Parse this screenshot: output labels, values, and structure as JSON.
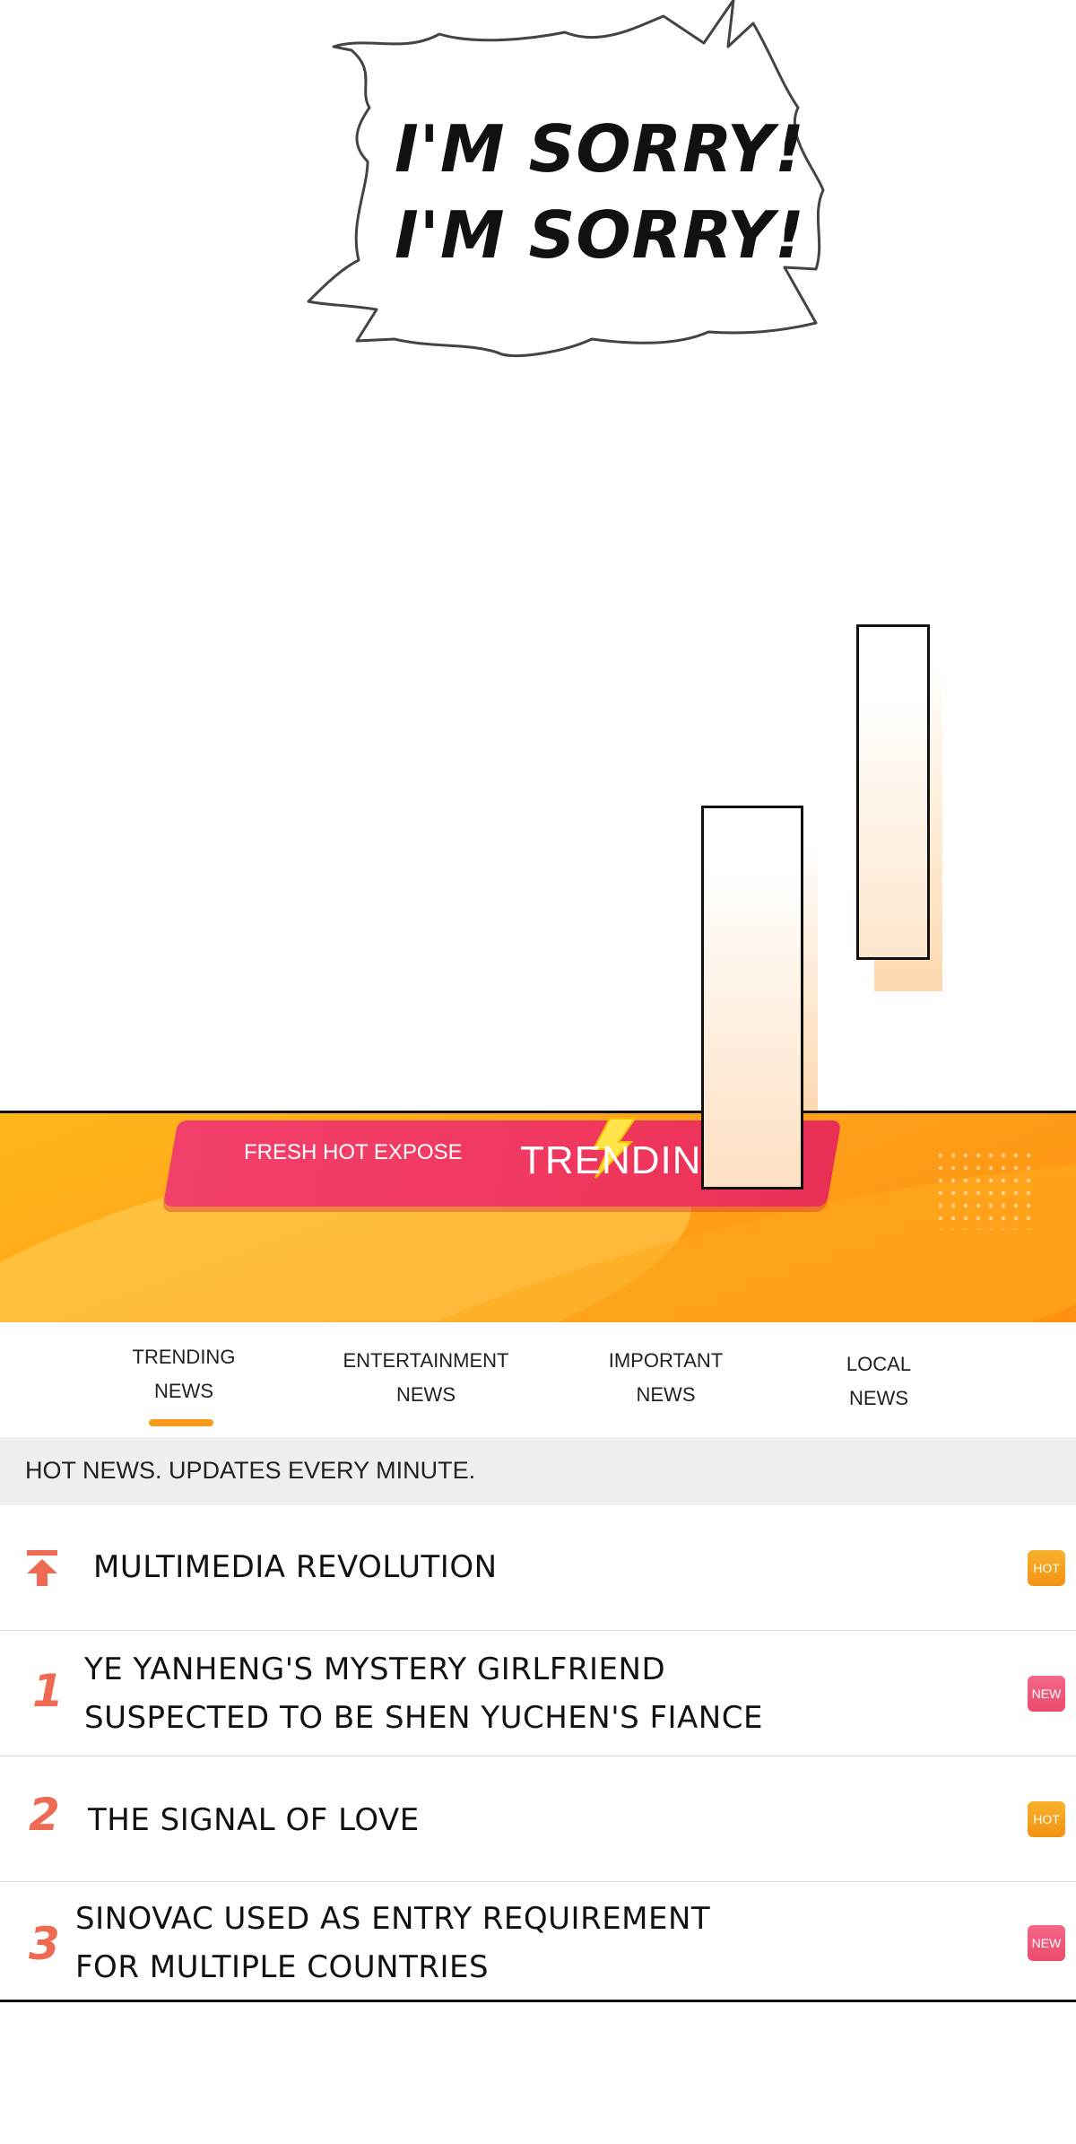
{
  "bubble": {
    "line1": "I'M SORRY!",
    "line2": "I'M SORRY!"
  },
  "banner": {
    "subtitle": "FRESH HOT EXPOSE",
    "title": "TRENDING"
  },
  "tabs": [
    {
      "line1": "TRENDING",
      "line2": "NEWS",
      "active": true
    },
    {
      "line1": "ENTERTAINMENT",
      "line2": "NEWS",
      "active": false
    },
    {
      "line1": "IMPORTANT",
      "line2": "NEWS",
      "active": false
    },
    {
      "line1": "LOCAL",
      "line2": "NEWS",
      "active": false
    }
  ],
  "strip": {
    "text": "HOT NEWS. UPDATES EVERY MINUTE."
  },
  "news": [
    {
      "rank": "",
      "icon": "pin-top-icon",
      "line1": "MULTIMEDIA REVOLUTION",
      "line2": "",
      "badge": "HOT"
    },
    {
      "rank": "1",
      "line1": "YE YANHENG'S MYSTERY GIRLFRIEND",
      "line2": "SUSPECTED TO BE SHEN YUCHEN'S FIANCE",
      "badge": "NEW"
    },
    {
      "rank": "2",
      "line1": "THE SIGNAL OF LOVE",
      "line2": "",
      "badge": "HOT"
    },
    {
      "rank": "3",
      "line1": "SINOVAC USED AS ENTRY REQUIREMENT",
      "line2": "FOR MULTIPLE COUNTRIES",
      "badge": "NEW"
    }
  ],
  "colors": {
    "accent_orange": "#f79b1c",
    "rank_red": "#ee6a52",
    "hot": "#f39412",
    "new": "#ec4a6d",
    "pill": "#f0385f"
  }
}
